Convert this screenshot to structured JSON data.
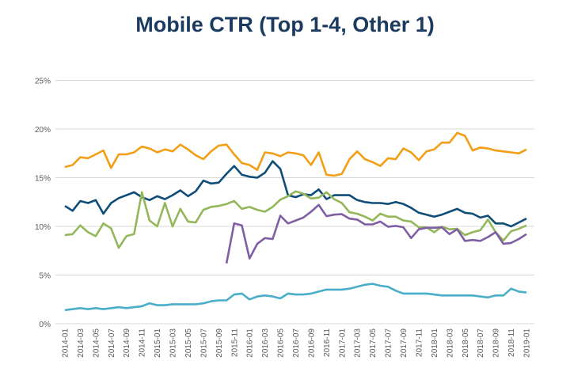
{
  "chart_data": {
    "type": "line",
    "title": "Mobile CTR (Top 1-4, Other 1)",
    "xlabel": "",
    "ylabel": "",
    "ylim": [
      0,
      25
    ],
    "yticks": [
      "0%",
      "5%",
      "10%",
      "15%",
      "20%",
      "25%"
    ],
    "ytick_values": [
      0,
      5,
      10,
      15,
      20,
      25
    ],
    "grid": true,
    "legend": "none",
    "x": [
      "2014-01",
      "2014-02",
      "2014-03",
      "2014-04",
      "2014-05",
      "2014-06",
      "2014-07",
      "2014-08",
      "2014-09",
      "2014-10",
      "2014-11",
      "2014-12",
      "2015-01",
      "2015-02",
      "2015-03",
      "2015-04",
      "2015-05",
      "2015-06",
      "2015-07",
      "2015-08",
      "2015-09",
      "2015-10",
      "2015-11",
      "2015-12",
      "2016-01",
      "2016-02",
      "2016-03",
      "2016-04",
      "2016-05",
      "2016-06",
      "2016-07",
      "2016-08",
      "2016-09",
      "2016-10",
      "2016-11",
      "2016-12",
      "2017-01",
      "2017-02",
      "2017-03",
      "2017-04",
      "2017-05",
      "2017-06",
      "2017-07",
      "2017-08",
      "2017-09",
      "2017-10",
      "2017-11",
      "2017-12",
      "2018-01",
      "2018-02",
      "2018-03",
      "2018-04",
      "2018-05",
      "2018-06",
      "2018-07",
      "2018-08",
      "2018-09",
      "2018-10",
      "2018-11",
      "2018-12",
      "2019-01"
    ],
    "xtick_every": 2,
    "series": [
      {
        "name": "",
        "color": "#f29e16",
        "values": [
          16.1,
          16.3,
          17.1,
          17.0,
          17.4,
          17.8,
          16.0,
          17.4,
          17.4,
          17.6,
          18.2,
          18.0,
          17.6,
          17.9,
          17.7,
          18.4,
          17.9,
          17.3,
          16.9,
          17.7,
          18.3,
          18.4,
          17.4,
          16.5,
          16.3,
          15.8,
          17.6,
          17.5,
          17.2,
          17.6,
          17.5,
          17.3,
          16.3,
          17.6,
          15.3,
          15.2,
          15.4,
          16.9,
          17.7,
          16.9,
          16.6,
          16.2,
          17.0,
          16.9,
          18.0,
          17.6,
          16.8,
          17.7,
          17.9,
          18.6,
          18.6,
          19.6,
          19.3,
          17.8,
          18.1,
          18.0,
          17.8,
          17.7,
          17.6,
          17.5,
          17.9
        ]
      },
      {
        "name": "",
        "color": "#0e4d78",
        "values": [
          12.1,
          11.6,
          12.6,
          12.4,
          12.7,
          11.3,
          12.4,
          12.9,
          13.2,
          13.5,
          13.0,
          12.7,
          13.1,
          12.8,
          13.2,
          13.7,
          13.1,
          13.6,
          14.7,
          14.4,
          14.5,
          15.4,
          16.2,
          15.3,
          15.1,
          15.0,
          15.5,
          16.7,
          15.9,
          13.2,
          13.0,
          13.3,
          13.2,
          13.8,
          12.8,
          13.2,
          13.2,
          13.2,
          12.7,
          12.5,
          12.4,
          12.4,
          12.3,
          12.5,
          12.3,
          11.9,
          11.4,
          11.2,
          11.0,
          11.2,
          11.5,
          11.8,
          11.4,
          11.3,
          10.9,
          11.1,
          10.3,
          10.3,
          10.0,
          10.4,
          10.8
        ]
      },
      {
        "name": "",
        "color": "#93b75a",
        "values": [
          9.1,
          9.2,
          10.1,
          9.4,
          9.0,
          10.3,
          9.8,
          7.8,
          9.0,
          9.2,
          13.5,
          10.6,
          10.0,
          12.4,
          10.0,
          11.8,
          10.5,
          10.4,
          11.7,
          12.0,
          12.1,
          12.3,
          12.6,
          11.8,
          12.0,
          11.7,
          11.5,
          12.0,
          12.75,
          13.1,
          13.6,
          13.35,
          12.86,
          12.95,
          13.5,
          12.8,
          12.4,
          11.45,
          11.3,
          11.0,
          10.6,
          11.3,
          11.0,
          11.0,
          10.6,
          10.5,
          9.9,
          9.9,
          9.4,
          9.97,
          9.7,
          9.75,
          9.1,
          9.4,
          9.6,
          10.7,
          9.4,
          8.55,
          9.5,
          9.75,
          10.1
        ]
      },
      {
        "name": "",
        "color": "#7e5fa4",
        "values": [
          null,
          null,
          null,
          null,
          null,
          null,
          null,
          null,
          null,
          null,
          null,
          null,
          null,
          null,
          null,
          null,
          null,
          null,
          null,
          null,
          null,
          6.2,
          10.3,
          10.1,
          6.7,
          8.2,
          8.8,
          8.7,
          11.1,
          10.3,
          10.6,
          10.9,
          11.5,
          12.2,
          11.05,
          11.2,
          11.25,
          10.8,
          10.7,
          10.2,
          10.2,
          10.5,
          9.97,
          10.05,
          9.9,
          8.8,
          9.7,
          9.85,
          9.85,
          9.9,
          9.2,
          9.7,
          8.5,
          8.6,
          8.5,
          8.9,
          9.4,
          8.2,
          8.3,
          8.7,
          9.2
        ]
      },
      {
        "name": "",
        "color": "#4aaec9",
        "values": [
          1.4,
          1.5,
          1.6,
          1.5,
          1.6,
          1.5,
          1.6,
          1.7,
          1.6,
          1.7,
          1.8,
          2.1,
          1.9,
          1.9,
          2.0,
          2.0,
          2.0,
          2.0,
          2.1,
          2.3,
          2.4,
          2.4,
          3.0,
          3.1,
          2.5,
          2.8,
          2.9,
          2.8,
          2.6,
          3.1,
          3.0,
          3.0,
          3.1,
          3.3,
          3.5,
          3.5,
          3.5,
          3.6,
          3.8,
          4.0,
          4.1,
          3.9,
          3.8,
          3.4,
          3.1,
          3.1,
          3.1,
          3.1,
          3.0,
          2.9,
          2.9,
          2.9,
          2.9,
          2.9,
          2.8,
          2.7,
          2.9,
          2.9,
          3.6,
          3.3,
          3.2
        ]
      }
    ]
  }
}
